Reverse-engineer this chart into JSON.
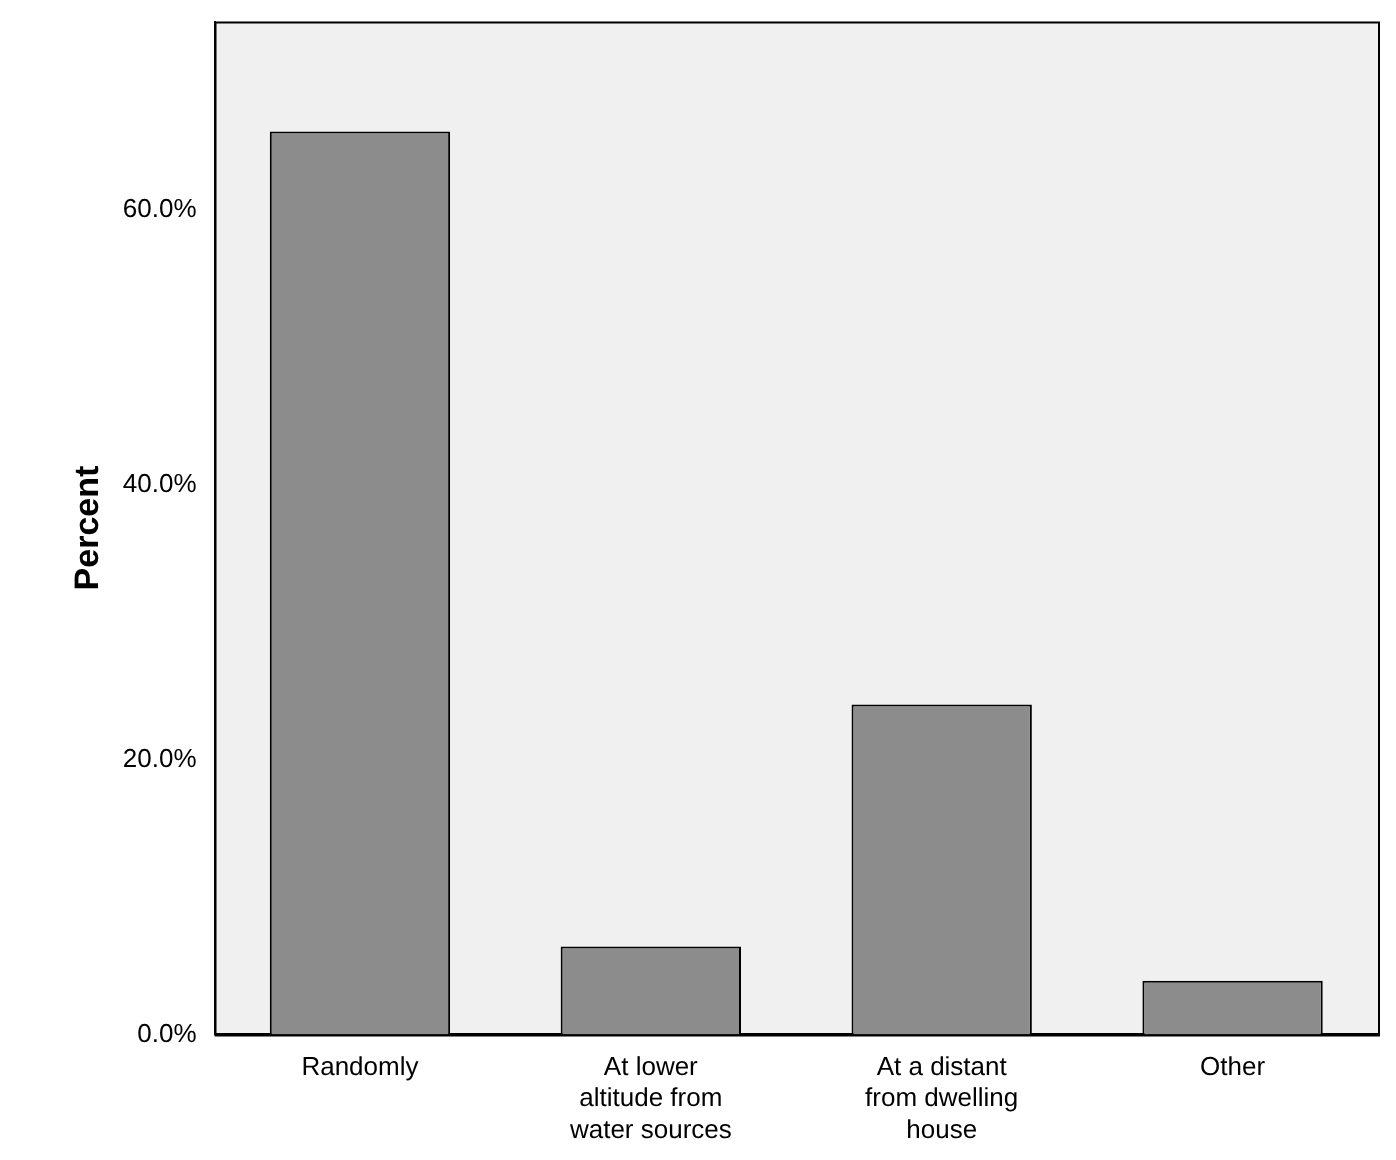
{
  "chart_data": {
    "type": "bar",
    "ylabel": "Percent",
    "categories": [
      "Randomly",
      "At lower altitude from water sources",
      "At a distant from dwelling house",
      "Other"
    ],
    "values": [
      65.7,
      6.4,
      24.0,
      3.9
    ],
    "color": "#8c8c8c",
    "ylim": [
      0,
      73.7
    ],
    "yticks": [
      {
        "value": 0,
        "label": "0.0%"
      },
      {
        "value": 20,
        "label": "20.0%"
      },
      {
        "value": 40,
        "label": "40.0%"
      },
      {
        "value": 60,
        "label": "60.0%"
      }
    ],
    "grid": false,
    "legend": false
  }
}
